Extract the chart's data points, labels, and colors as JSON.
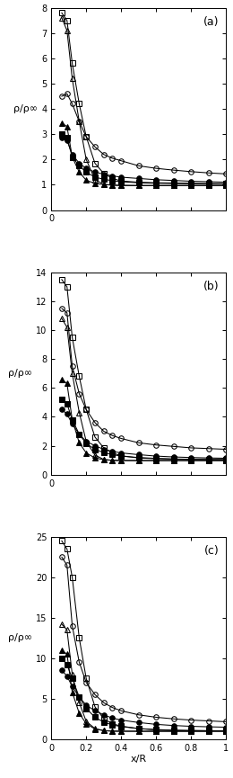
{
  "panels": [
    {
      "label": "(a)",
      "ylim": [
        0,
        8
      ],
      "yticks": [
        0,
        1,
        2,
        3,
        4,
        5,
        6,
        7,
        8
      ],
      "ylabel": "ρ/ρ∞"
    },
    {
      "label": "(b)",
      "ylim": [
        0,
        14
      ],
      "yticks": [
        0,
        2,
        4,
        6,
        8,
        10,
        12,
        14
      ],
      "ylabel": "ρ/ρ∞"
    },
    {
      "label": "(c)",
      "ylim": [
        0,
        25
      ],
      "yticks": [
        0,
        5,
        10,
        15,
        20,
        25
      ],
      "ylabel": "ρ/ρ∞"
    }
  ],
  "series": {
    "circle_open": {
      "x": [
        0.06,
        0.09,
        0.12,
        0.16,
        0.2,
        0.25,
        0.3,
        0.35,
        0.4,
        0.5,
        0.6,
        0.7,
        0.8,
        0.9,
        1.0
      ],
      "y_a": [
        4.5,
        4.6,
        4.2,
        3.5,
        2.9,
        2.5,
        2.2,
        2.05,
        1.95,
        1.75,
        1.65,
        1.58,
        1.52,
        1.47,
        1.43
      ],
      "y_b": [
        11.5,
        11.2,
        7.5,
        5.6,
        4.5,
        3.6,
        3.0,
        2.7,
        2.5,
        2.2,
        2.05,
        1.95,
        1.85,
        1.8,
        1.75
      ],
      "y_c": [
        22.5,
        21.5,
        14.0,
        9.5,
        7.0,
        5.5,
        4.5,
        3.9,
        3.5,
        3.0,
        2.7,
        2.5,
        2.35,
        2.25,
        2.15
      ],
      "marker": "o",
      "fillstyle": "none",
      "color": "black",
      "ms": 4.0
    },
    "square_open": {
      "x": [
        0.06,
        0.09,
        0.12,
        0.16,
        0.2,
        0.25,
        0.3,
        0.35,
        0.4,
        0.5,
        0.6,
        0.7,
        0.8,
        0.9,
        1.0
      ],
      "y_a": [
        7.8,
        7.5,
        5.8,
        4.2,
        2.9,
        1.85,
        1.45,
        1.25,
        1.15,
        1.1,
        1.08,
        1.07,
        1.06,
        1.05,
        1.04
      ],
      "y_b": [
        13.5,
        13.0,
        9.5,
        6.8,
        4.5,
        2.6,
        1.85,
        1.5,
        1.3,
        1.15,
        1.1,
        1.07,
        1.05,
        1.04,
        1.03
      ],
      "y_c": [
        24.5,
        23.5,
        20.0,
        12.5,
        7.5,
        4.0,
        2.5,
        1.9,
        1.6,
        1.3,
        1.15,
        1.08,
        1.05,
        1.03,
        1.02
      ],
      "marker": "s",
      "fillstyle": "none",
      "color": "black",
      "ms": 4.0
    },
    "triangle_open": {
      "x": [
        0.06,
        0.09,
        0.12,
        0.16,
        0.2,
        0.25,
        0.3,
        0.35,
        0.4,
        0.5,
        0.6,
        0.7,
        0.8,
        0.9,
        1.0
      ],
      "y_a": [
        7.6,
        7.1,
        5.2,
        3.5,
        2.0,
        1.2,
        1.02,
        0.98,
        0.97,
        0.97,
        0.97,
        0.97,
        0.97,
        0.97,
        0.97
      ],
      "y_b": [
        10.8,
        10.2,
        7.0,
        4.3,
        2.3,
        1.35,
        1.05,
        0.98,
        0.97,
        0.97,
        0.97,
        0.97,
        0.97,
        0.97,
        0.97
      ],
      "y_c": [
        14.2,
        13.5,
        8.0,
        4.5,
        2.2,
        1.3,
        1.05,
        0.98,
        0.97,
        0.97,
        0.97,
        0.97,
        0.97,
        0.97,
        0.97
      ],
      "marker": "^",
      "fillstyle": "none",
      "color": "black",
      "ms": 4.0
    },
    "circle_filled": {
      "x": [
        0.06,
        0.09,
        0.12,
        0.16,
        0.2,
        0.25,
        0.3,
        0.35,
        0.4,
        0.5,
        0.6,
        0.7,
        0.8,
        0.9,
        1.0
      ],
      "y_a": [
        2.85,
        2.75,
        2.2,
        1.85,
        1.65,
        1.5,
        1.42,
        1.35,
        1.3,
        1.25,
        1.2,
        1.17,
        1.14,
        1.12,
        1.1
      ],
      "y_b": [
        4.5,
        4.2,
        3.5,
        2.8,
        2.3,
        2.0,
        1.75,
        1.6,
        1.5,
        1.38,
        1.28,
        1.22,
        1.18,
        1.15,
        1.13
      ],
      "y_c": [
        8.5,
        7.8,
        6.5,
        5.2,
        4.2,
        3.5,
        3.0,
        2.6,
        2.35,
        2.05,
        1.82,
        1.68,
        1.58,
        1.52,
        1.47
      ],
      "marker": "o",
      "fillstyle": "full",
      "color": "black",
      "ms": 4.0
    },
    "square_filled": {
      "x": [
        0.06,
        0.09,
        0.12,
        0.16,
        0.2,
        0.25,
        0.3,
        0.35,
        0.4,
        0.5,
        0.6,
        0.7,
        0.8,
        0.9,
        1.0
      ],
      "y_a": [
        3.0,
        2.85,
        2.1,
        1.75,
        1.5,
        1.3,
        1.22,
        1.16,
        1.12,
        1.08,
        1.06,
        1.05,
        1.04,
        1.03,
        1.03
      ],
      "y_b": [
        5.2,
        4.9,
        3.8,
        2.8,
        2.15,
        1.75,
        1.52,
        1.38,
        1.28,
        1.18,
        1.12,
        1.08,
        1.06,
        1.05,
        1.04
      ],
      "y_c": [
        10.0,
        9.2,
        7.5,
        5.2,
        3.8,
        2.7,
        2.1,
        1.75,
        1.55,
        1.3,
        1.18,
        1.1,
        1.06,
        1.04,
        1.03
      ],
      "marker": "s",
      "fillstyle": "full",
      "color": "black",
      "ms": 4.0
    },
    "triangle_filled": {
      "x": [
        0.06,
        0.09,
        0.12,
        0.16,
        0.2,
        0.25,
        0.3,
        0.35,
        0.4,
        0.5,
        0.6,
        0.7,
        0.8,
        0.9,
        1.0
      ],
      "y_a": [
        3.45,
        3.3,
        2.1,
        1.5,
        1.18,
        1.05,
        1.01,
        0.99,
        0.98,
        0.97,
        0.97,
        0.97,
        0.97,
        0.97,
        0.97
      ],
      "y_b": [
        6.6,
        6.3,
        3.8,
        2.2,
        1.5,
        1.15,
        1.03,
        0.99,
        0.98,
        0.97,
        0.97,
        0.97,
        0.97,
        0.97,
        0.97
      ],
      "y_c": [
        11.0,
        10.5,
        5.8,
        3.2,
        1.9,
        1.25,
        1.05,
        0.99,
        0.98,
        0.97,
        0.97,
        0.97,
        0.97,
        0.97,
        0.97
      ],
      "marker": "^",
      "fillstyle": "full",
      "color": "black",
      "ms": 4.0
    }
  },
  "xlabel": "x/R",
  "xlim": [
    0,
    1.0
  ],
  "xticks": [
    0,
    0.2,
    0.4,
    0.6,
    0.8,
    1.0
  ],
  "xticklabels_bottom": [
    "0",
    "0.2",
    "0.4",
    "0.6",
    "0.8",
    "1"
  ],
  "xticklabels_top": [
    "0",
    "",
    "",
    "",
    "",
    ""
  ]
}
